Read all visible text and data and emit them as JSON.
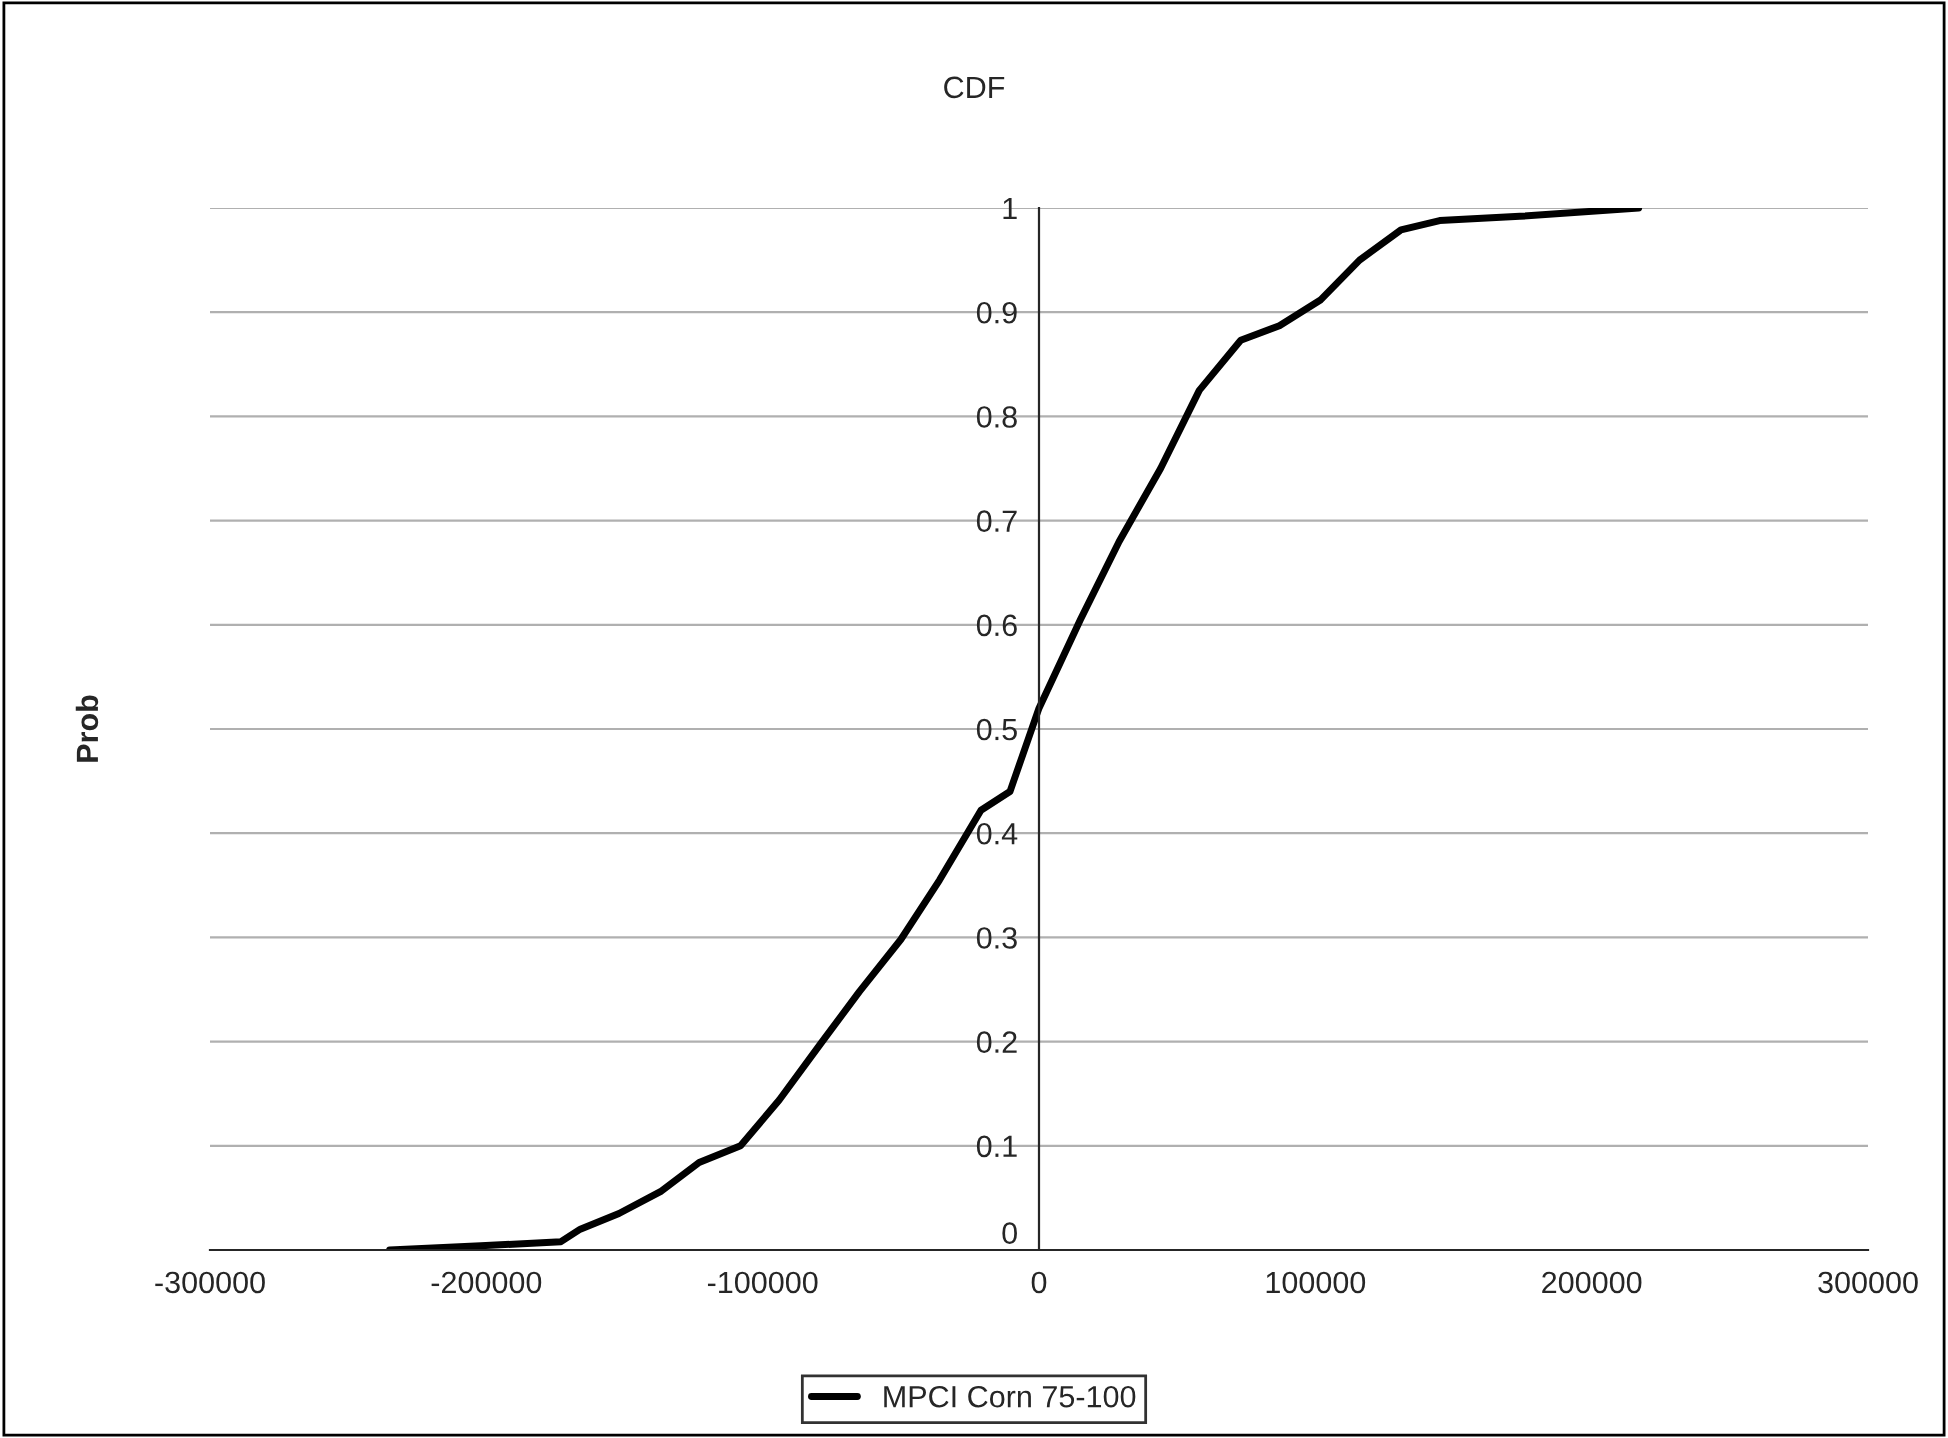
{
  "chart_data": {
    "type": "line",
    "title": "CDF",
    "ylabel": "Prob",
    "xlim": [
      -300000,
      300000
    ],
    "xticks": [
      -300000,
      -200000,
      -100000,
      0,
      100000,
      200000,
      300000
    ],
    "ylim": [
      0,
      1
    ],
    "yticks": [
      0,
      0.1,
      0.2,
      0.3,
      0.4,
      0.5,
      0.6,
      0.7,
      0.8,
      0.9,
      1
    ],
    "grid": "y",
    "legend": "bottom",
    "series": [
      {
        "name": "MPCI Corn 75-100",
        "color": "#000000",
        "x": [
          -235000,
          -202000,
          -173000,
          -166000,
          -152000,
          -137000,
          -123000,
          -108000,
          -94000,
          -79000,
          -65000,
          -50000,
          -36000,
          -21000,
          -10500,
          0,
          15000,
          29000,
          44000,
          58000,
          73000,
          87000,
          102000,
          116000,
          131000,
          145000,
          174000,
          217000
        ],
        "values": [
          0,
          0.004,
          0.008,
          0.02,
          0.035,
          0.056,
          0.084,
          0.1,
          0.144,
          0.198,
          0.248,
          0.298,
          0.355,
          0.422,
          0.44,
          0.52,
          0.605,
          0.68,
          0.75,
          0.825,
          0.873,
          0.887,
          0.912,
          0.95,
          0.979,
          0.988,
          0.992,
          1.0
        ]
      }
    ]
  }
}
